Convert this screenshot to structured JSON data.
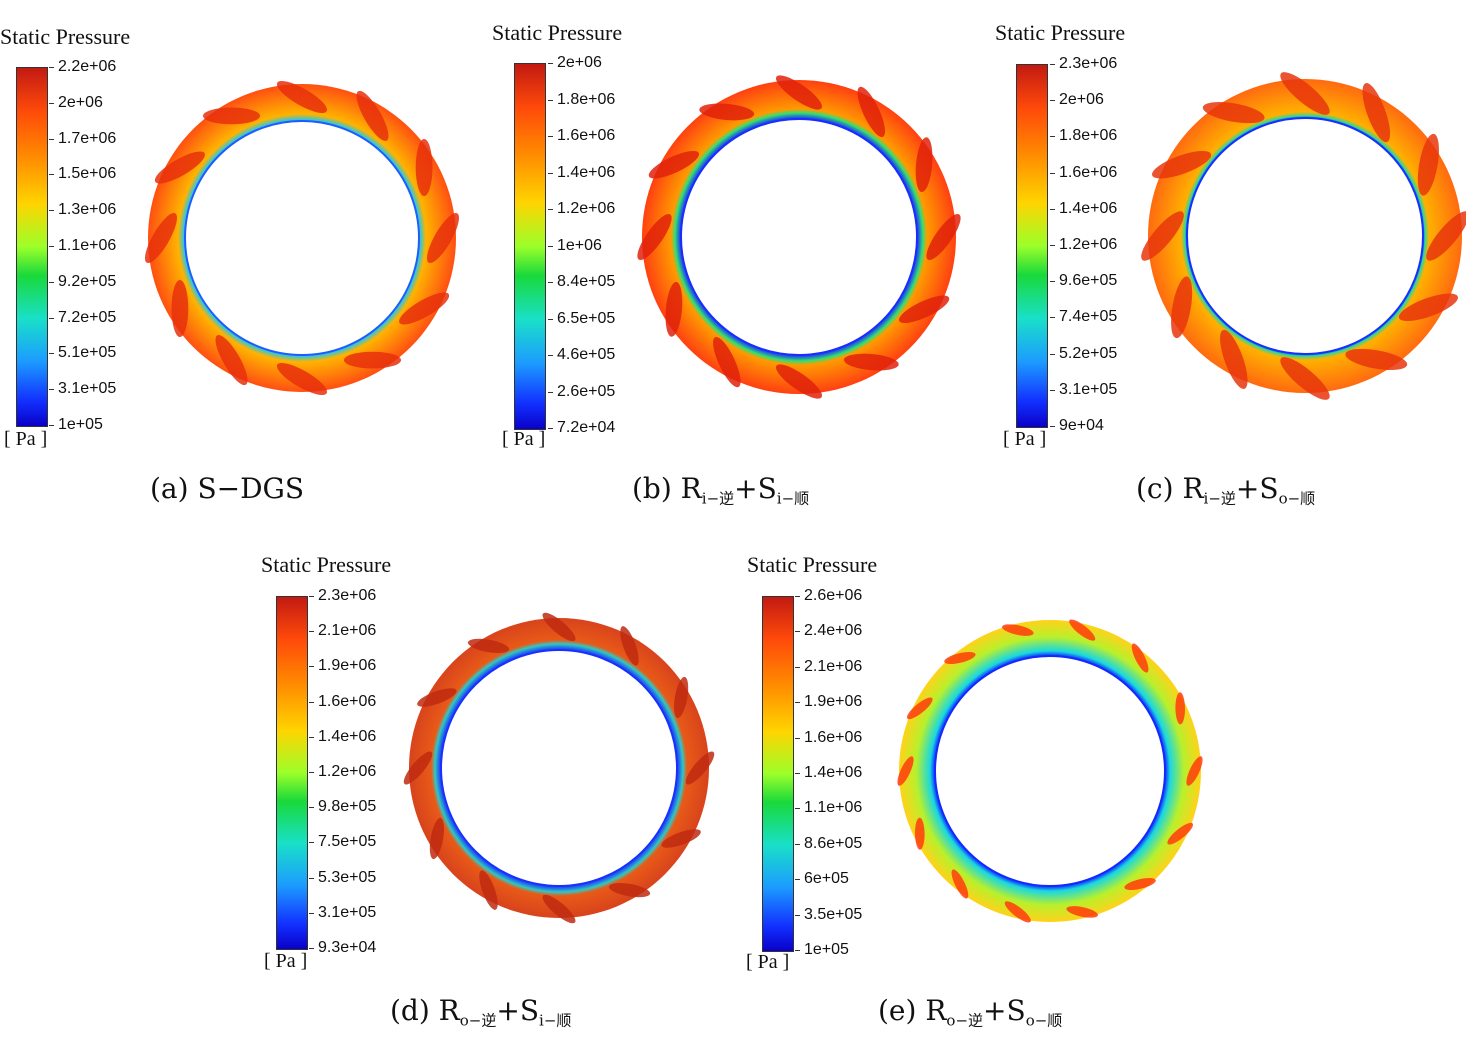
{
  "legend_title": "Static Pressure",
  "unit": "[ Pa ]",
  "panels": [
    {
      "caption": {
        "label": "(a) S−DGS",
        "main": "",
        "sub1": "",
        "plus": "",
        "main2": "",
        "sub2": ""
      },
      "ticks": [
        "2.2e+06",
        "2e+06",
        "1.7e+06",
        "1.5e+06",
        "1.3e+06",
        "1.1e+06",
        "9.2e+05",
        "7.2e+05",
        "5.1e+05",
        "3.1e+05",
        "1e+05"
      ],
      "colors": {
        "outer": "#ff4f12",
        "mid": "#ffb300",
        "inner": "#22c8e8",
        "blob": "#e8300c",
        "edge": "#1e5cff"
      }
    },
    {
      "caption": {
        "label": "(b) ",
        "main": "R",
        "sub1": "i−逆",
        "plus": "+",
        "main2": "S",
        "sub2": "i−顺"
      },
      "ticks": [
        "2e+06",
        "1.8e+06",
        "1.6e+06",
        "1.4e+06",
        "1.2e+06",
        "1e+06",
        "8.4e+05",
        "6.5e+05",
        "4.6e+05",
        "2.6e+05",
        "7.2e+04"
      ],
      "colors": {
        "outer": "#ff4012",
        "mid": "#ff9a00",
        "inner": "#32e070",
        "blob": "#e0220a",
        "edge": "#1a2cff"
      }
    },
    {
      "caption": {
        "label": "(c) ",
        "main": "R",
        "sub1": "i−逆",
        "plus": "+",
        "main2": "S",
        "sub2": "o−顺"
      },
      "ticks": [
        "2.3e+06",
        "2e+06",
        "1.8e+06",
        "1.6e+06",
        "1.4e+06",
        "1.2e+06",
        "9.6e+05",
        "7.4e+05",
        "5.2e+05",
        "3.1e+05",
        "9e+04"
      ],
      "colors": {
        "outer": "#ff6a10",
        "mid": "#ffb000",
        "inner": "#2ad89a",
        "blob": "#e8360c",
        "edge": "#1830ff"
      }
    },
    {
      "caption": {
        "label": "(d) ",
        "main": "R",
        "sub1": "o−逆",
        "plus": "+",
        "main2": "S",
        "sub2": "i−顺"
      },
      "ticks": [
        "2.3e+06",
        "2.1e+06",
        "1.9e+06",
        "1.6e+06",
        "1.4e+06",
        "1.2e+06",
        "9.8e+05",
        "7.5e+05",
        "5.3e+05",
        "3.1e+05",
        "9.3e+04"
      ],
      "colors": {
        "outer": "#d8431c",
        "mid": "#e85a18",
        "inner": "#30c8c0",
        "blob": "#c02a10",
        "edge": "#1a30ff"
      }
    },
    {
      "caption": {
        "label": "(e) ",
        "main": "R",
        "sub1": "o−逆",
        "plus": "+",
        "main2": "S",
        "sub2": "o−顺"
      },
      "ticks": [
        "2.6e+06",
        "2.4e+06",
        "2.1e+06",
        "1.9e+06",
        "1.6e+06",
        "1.4e+06",
        "1.1e+06",
        "8.6e+05",
        "6e+05",
        "3.5e+05",
        "1e+05"
      ],
      "colors": {
        "outer": "#ffd21a",
        "mid": "#b8f02c",
        "inner": "#18d8e0",
        "blob": "#ff3c0c",
        "edge": "#1428ff"
      }
    }
  ]
}
